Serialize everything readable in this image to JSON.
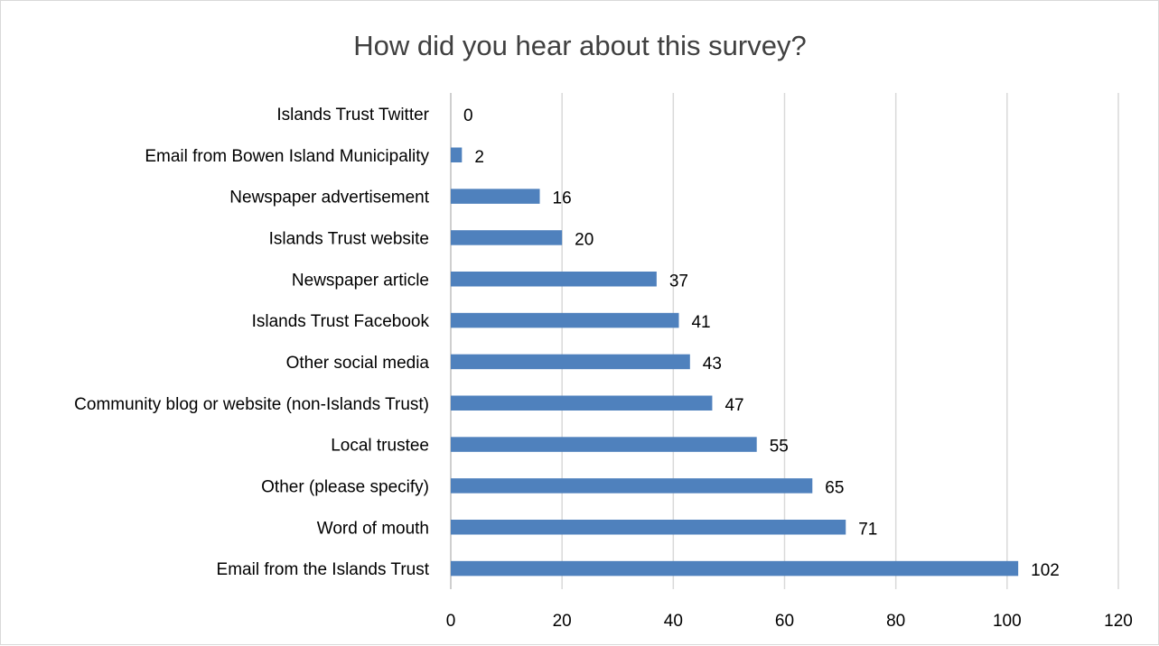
{
  "chart_data": {
    "type": "bar",
    "orientation": "horizontal",
    "title": "How did you hear about this survey?",
    "xlabel": "",
    "ylabel": "",
    "xlim": [
      0,
      120
    ],
    "x_ticks": [
      0,
      20,
      40,
      60,
      80,
      100,
      120
    ],
    "grid": true,
    "legend": "none",
    "bar_color": "#4F81BD",
    "grid_color": "#d9d9d9",
    "categories": [
      "Islands Trust Twitter",
      "Email from Bowen Island Municipality",
      "Newspaper advertisement",
      "Islands Trust website",
      "Newspaper article",
      "Islands Trust Facebook",
      "Other social media",
      "Community blog or website (non-Islands Trust)",
      "Local trustee",
      "Other (please specify)",
      "Word of mouth",
      "Email from the Islands Trust"
    ],
    "values": [
      0,
      2,
      16,
      20,
      37,
      41,
      43,
      47,
      55,
      65,
      71,
      102
    ]
  }
}
